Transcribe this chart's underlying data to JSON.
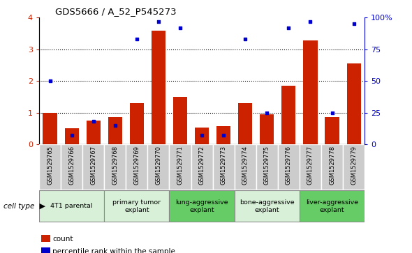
{
  "title": "GDS5666 / A_52_P545273",
  "samples": [
    "GSM1529765",
    "GSM1529766",
    "GSM1529767",
    "GSM1529768",
    "GSM1529769",
    "GSM1529770",
    "GSM1529771",
    "GSM1529772",
    "GSM1529773",
    "GSM1529774",
    "GSM1529775",
    "GSM1529776",
    "GSM1529777",
    "GSM1529778",
    "GSM1529779"
  ],
  "bar_values": [
    1.0,
    0.5,
    0.75,
    0.85,
    1.3,
    3.6,
    1.5,
    0.52,
    0.58,
    1.3,
    0.95,
    1.85,
    3.28,
    0.85,
    2.55
  ],
  "dot_values": [
    50,
    7,
    18,
    15,
    83,
    97,
    92,
    7,
    7,
    83,
    25,
    92,
    97,
    25,
    95
  ],
  "bar_color": "#cc2200",
  "dot_color": "#0000cc",
  "ylim_left": [
    0,
    4
  ],
  "ylim_right": [
    0,
    100
  ],
  "yticks_left": [
    0,
    1,
    2,
    3,
    4
  ],
  "yticks_right": [
    0,
    25,
    50,
    75,
    100
  ],
  "ytick_labels_right": [
    "0",
    "25",
    "50",
    "75",
    "100%"
  ],
  "groups": [
    {
      "label": "4T1 parental",
      "start": 0,
      "end": 2,
      "color": "#d8f0d8"
    },
    {
      "label": "primary tumor\nexplant",
      "start": 3,
      "end": 5,
      "color": "#d8f0d8"
    },
    {
      "label": "lung-aggressive\nexplant",
      "start": 6,
      "end": 8,
      "color": "#66cc66"
    },
    {
      "label": "bone-aggressive\nexplant",
      "start": 9,
      "end": 11,
      "color": "#d8f0d8"
    },
    {
      "label": "liver-aggressive\nexplant",
      "start": 12,
      "end": 14,
      "color": "#66cc66"
    }
  ],
  "legend_count_label": "count",
  "legend_pct_label": "percentile rank within the sample",
  "cell_type_label": "cell type",
  "sample_bg_color": "#cccccc",
  "background_color": "#ffffff",
  "tick_color_left": "#cc2200",
  "tick_color_right": "#0000cc",
  "plot_bg": "#ffffff"
}
